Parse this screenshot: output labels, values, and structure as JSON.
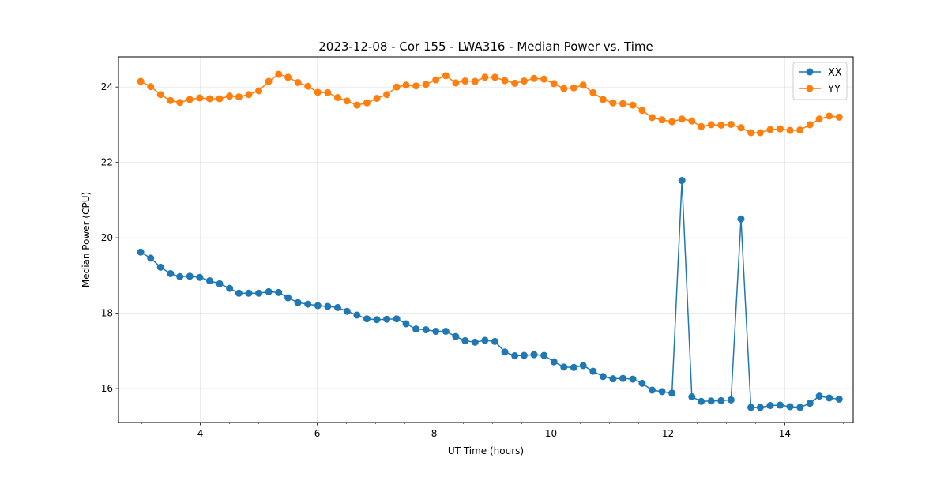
{
  "chart_data": {
    "type": "line",
    "title": "2023-12-08 - Cor 155 - LWA316 - Median Power vs. Time",
    "xlabel": "UT Time (hours)",
    "ylabel": "Median Power (CPU)",
    "xlim": [
      2.6,
      15.17
    ],
    "ylim": [
      15.1,
      24.8
    ],
    "xticks": [
      4,
      6,
      8,
      10,
      12,
      14
    ],
    "xtick_labels": [
      "4",
      "6",
      "8",
      "10",
      "12",
      "14"
    ],
    "xminor_step": 0.5,
    "yticks": [
      16,
      18,
      20,
      22,
      24
    ],
    "ytick_labels": [
      "16",
      "18",
      "20",
      "22",
      "24"
    ],
    "grid": true,
    "legend_position": "top-right",
    "x": [
      2.98,
      3.15,
      3.32,
      3.49,
      3.65,
      3.82,
      3.99,
      4.16,
      4.33,
      4.5,
      4.66,
      4.83,
      5.0,
      5.17,
      5.34,
      5.5,
      5.67,
      5.84,
      6.01,
      6.18,
      6.35,
      6.51,
      6.68,
      6.85,
      7.02,
      7.19,
      7.36,
      7.52,
      7.69,
      7.86,
      8.03,
      8.2,
      8.37,
      8.53,
      8.7,
      8.87,
      9.04,
      9.21,
      9.38,
      9.54,
      9.71,
      9.88,
      10.05,
      10.22,
      10.39,
      10.55,
      10.72,
      10.89,
      11.06,
      11.23,
      11.4,
      11.56,
      11.73,
      11.9,
      12.07,
      12.24,
      12.41,
      12.57,
      12.74,
      12.91,
      13.08,
      13.25,
      13.42,
      13.58,
      13.75,
      13.92,
      14.09,
      14.26,
      14.43,
      14.59,
      14.76,
      14.93
    ],
    "series": [
      {
        "name": "XX",
        "color": "#1f77b4",
        "values": [
          19.62,
          19.46,
          19.22,
          19.05,
          18.97,
          18.98,
          18.95,
          18.86,
          18.78,
          18.66,
          18.53,
          18.53,
          18.53,
          18.57,
          18.55,
          18.41,
          18.28,
          18.24,
          18.2,
          18.18,
          18.15,
          18.05,
          17.95,
          17.85,
          17.83,
          17.84,
          17.85,
          17.72,
          17.58,
          17.56,
          17.52,
          17.52,
          17.38,
          17.27,
          17.23,
          17.28,
          17.25,
          16.97,
          16.87,
          16.88,
          16.9,
          16.88,
          16.71,
          16.57,
          16.56,
          16.61,
          16.46,
          16.32,
          16.26,
          16.27,
          16.25,
          16.14,
          15.96,
          15.92,
          15.88,
          21.52,
          15.78,
          15.66,
          15.67,
          15.68,
          15.7,
          20.5,
          15.5,
          15.5,
          15.55,
          15.56,
          15.52,
          15.5,
          15.61,
          15.8,
          15.75,
          15.72
        ]
      },
      {
        "name": "YY",
        "color": "#ff7f0e",
        "values": [
          24.15,
          24.01,
          23.8,
          23.64,
          23.59,
          23.67,
          23.71,
          23.69,
          23.69,
          23.76,
          23.74,
          23.8,
          23.9,
          24.15,
          24.34,
          24.26,
          24.12,
          24.02,
          23.86,
          23.85,
          23.72,
          23.63,
          23.52,
          23.58,
          23.7,
          23.8,
          24.0,
          24.05,
          24.03,
          24.07,
          24.19,
          24.3,
          24.11,
          24.16,
          24.15,
          24.26,
          24.26,
          24.17,
          24.1,
          24.16,
          24.23,
          24.21,
          24.09,
          23.96,
          23.98,
          24.05,
          23.85,
          23.67,
          23.58,
          23.56,
          23.52,
          23.38,
          23.19,
          23.13,
          23.08,
          23.15,
          23.1,
          22.95,
          23.0,
          22.99,
          23.01,
          22.92,
          22.79,
          22.79,
          22.87,
          22.89,
          22.85,
          22.86,
          23.0,
          23.15,
          23.23,
          23.2
        ]
      }
    ]
  }
}
